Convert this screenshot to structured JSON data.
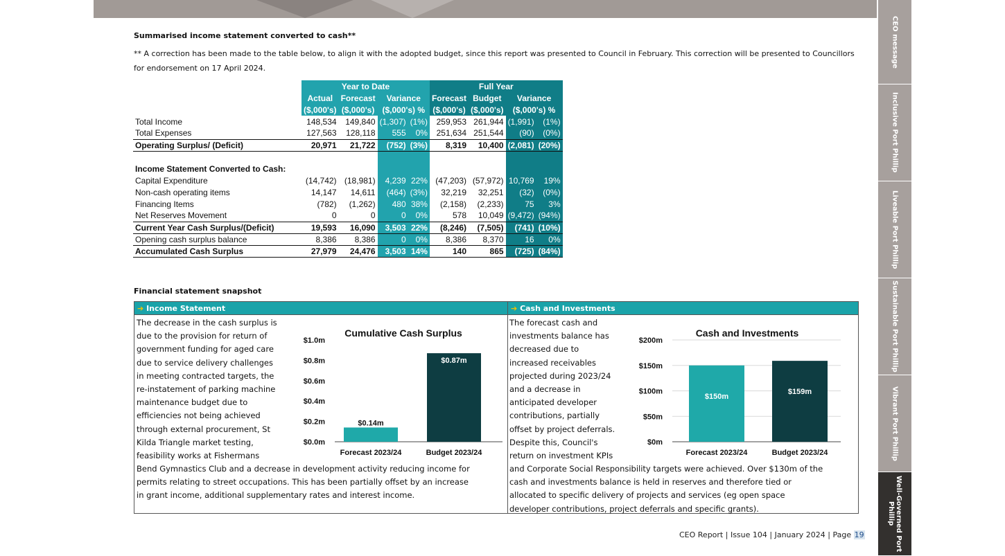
{
  "sidebar": {
    "tabs": [
      {
        "label": "CEO message",
        "active": false
      },
      {
        "label": "Inclusive\nPort Phillip",
        "active": false
      },
      {
        "label": "Liveable\nPort Phillip",
        "active": false
      },
      {
        "label": "Sustainable\nPort Phillip",
        "active": false
      },
      {
        "label": "Vibrant\nPort Phillip",
        "active": false
      },
      {
        "label": "Well-Governed\nPort Phillip",
        "active": true
      }
    ]
  },
  "summary": {
    "heading": "Summarised income statement converted to cash**",
    "note": "** A correction has been made to the table below, to align it with the adopted budget, since this report was presented to Council in February.  This correction will be presented to Councillors for endorsement on 17 April 2024."
  },
  "table": {
    "group_ytd": "Year to Date",
    "group_fy": "Full Year",
    "head1": [
      "Actual",
      "Forecast",
      "Variance",
      "Forecast",
      "Budget",
      "Variance"
    ],
    "head2": [
      "($,000's)",
      "($,000's)",
      "($,000's) %",
      "($,000's)",
      "($,000's)",
      "($,000's) %"
    ],
    "rows": {
      "r1": [
        "Total Income",
        "148,534",
        "149,840",
        "(1,307)",
        "(1%)",
        "259,953",
        "261,944",
        "(1,991)",
        "(1%)"
      ],
      "r2": [
        "Total Expenses",
        "127,563",
        "128,118",
        "555",
        "0%",
        "251,634",
        "251,544",
        "(90)",
        "(0%)"
      ],
      "r3": [
        "Operating Surplus/ (Deficit)",
        "20,971",
        "21,722",
        "(752)",
        "(3%)",
        "8,319",
        "10,400",
        "(2,081)",
        "(20%)"
      ],
      "r4": [
        "Income Statement Converted to Cash:"
      ],
      "r5": [
        "Capital Expenditure",
        "(14,742)",
        "(18,981)",
        "4,239",
        "22%",
        "(47,203)",
        "(57,972)",
        "10,769",
        "19%"
      ],
      "r6": [
        "Non-cash operating items",
        "14,147",
        "14,611",
        "(464)",
        "(3%)",
        "32,219",
        "32,251",
        "(32)",
        "(0%)"
      ],
      "r7": [
        "Financing Items",
        "(782)",
        "(1,262)",
        "480",
        "38%",
        "(2,158)",
        "(2,233)",
        "75",
        "3%"
      ],
      "r8": [
        "Net Reserves Movement",
        "0",
        "0",
        "0",
        "0%",
        "578",
        "10,049",
        "(9,472)",
        "(94%)"
      ],
      "r9": [
        "Current Year Cash Surplus/(Deficit)",
        "19,593",
        "16,090",
        "3,503",
        "22%",
        "(8,246)",
        "(7,505)",
        "(741)",
        "(10%)"
      ],
      "r10": [
        "Opening cash surplus balance",
        "8,386",
        "8,386",
        "0",
        "0%",
        "8,386",
        "8,370",
        "16",
        "0%"
      ],
      "r11": [
        "Accumulated Cash Surplus",
        "27,979",
        "24,476",
        "3,503",
        "14%",
        "140",
        "865",
        "(725)",
        "(84%)"
      ]
    }
  },
  "snapshot": {
    "heading": "Financial statement snapshot",
    "arrow": "➔",
    "left_title": "Income Statement",
    "right_title": "Cash and Investments",
    "left_text_a": [
      "The decrease in the cash surplus is",
      "due to the provision for return of",
      "government funding for aged care",
      "due to service delivery challenges",
      "in meeting contracted targets, the",
      "re-instatement of parking machine",
      "maintenance budget due to",
      "efficiencies not being achieved",
      "through external procurement, St",
      "Kilda Triangle market testing,",
      "feasibility works at Fishermans"
    ],
    "left_text_b": [
      "Bend Gymnastics Club and a decrease in development activity reducing income for",
      "permits relating to street occupations. This has been partially offset by an increase",
      "in grant income, additional supplementary rates and interest income."
    ],
    "right_text_a": [
      "The forecast cash and",
      "investments balance has",
      "decreased due to",
      "increased receivables",
      "projected during 2023/24",
      "and a decrease in",
      "anticipated developer",
      "contributions, partially",
      "offset by project deferrals.",
      "Despite this, Council's",
      "return on investment KPIs"
    ],
    "right_text_b": [
      "and Corporate Social Responsibility targets were achieved. Over $130m of the",
      "cash and investments balance is held in reserves and therefore tied or",
      "allocated to specific delivery of projects and services (eg open space",
      "developer contributions, project deferrals and specific grants)."
    ]
  },
  "chart_data": [
    {
      "type": "bar",
      "title": "Cumulative Cash Surplus",
      "categories": [
        "Forecast 2023/24",
        "Budget 2023/24"
      ],
      "values": [
        0.14,
        0.87
      ],
      "data_labels": [
        "$0.14m",
        "$0.87m"
      ],
      "yticks": [
        "$0.0m",
        "$0.2m",
        "$0.4m",
        "$0.6m",
        "$0.8m",
        "$1.0m"
      ],
      "ylim": [
        0,
        1.0
      ],
      "colors": [
        "#1fa9a9",
        "#0e3d42"
      ],
      "grid": false
    },
    {
      "type": "bar",
      "title": "Cash and Investments",
      "categories": [
        "Forecast 2023/24",
        "Budget 2023/24"
      ],
      "values": [
        150,
        159
      ],
      "data_labels": [
        "$150m",
        "$159m"
      ],
      "yticks": [
        "$0m",
        "$50m",
        "$100m",
        "$150m",
        "$200m"
      ],
      "ylim": [
        0,
        200
      ],
      "colors": [
        "#1fa9a9",
        "#0e3d42"
      ],
      "grid": true
    }
  ],
  "footer": {
    "text": "CEO Report | Issue 104 | January 2024 | Page ",
    "page": "19"
  }
}
